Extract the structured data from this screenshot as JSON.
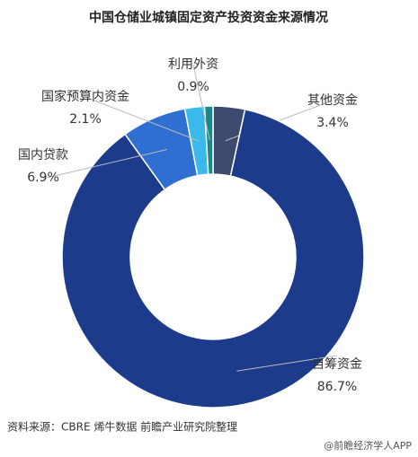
{
  "chart_data": {
    "type": "donut",
    "title": "中国仓储业城镇固定资产投资资金来源情况",
    "categories": [
      "其他资金",
      "自筹资金",
      "国内贷款",
      "国家预算内资金",
      "利用外资"
    ],
    "values": [
      3.4,
      86.7,
      6.9,
      2.1,
      0.9
    ],
    "value_labels": [
      "3.4%",
      "86.7%",
      "6.9%",
      "2.1%",
      "0.9%"
    ],
    "colors": [
      "#3b4a6e",
      "#1d3b8b",
      "#2e6fd1",
      "#3cb9ec",
      "#198a8c"
    ],
    "source": "资料来源：CBRE 烯牛数据 前瞻产业研究院整理",
    "watermark": "@前瞻经济学人APP"
  }
}
